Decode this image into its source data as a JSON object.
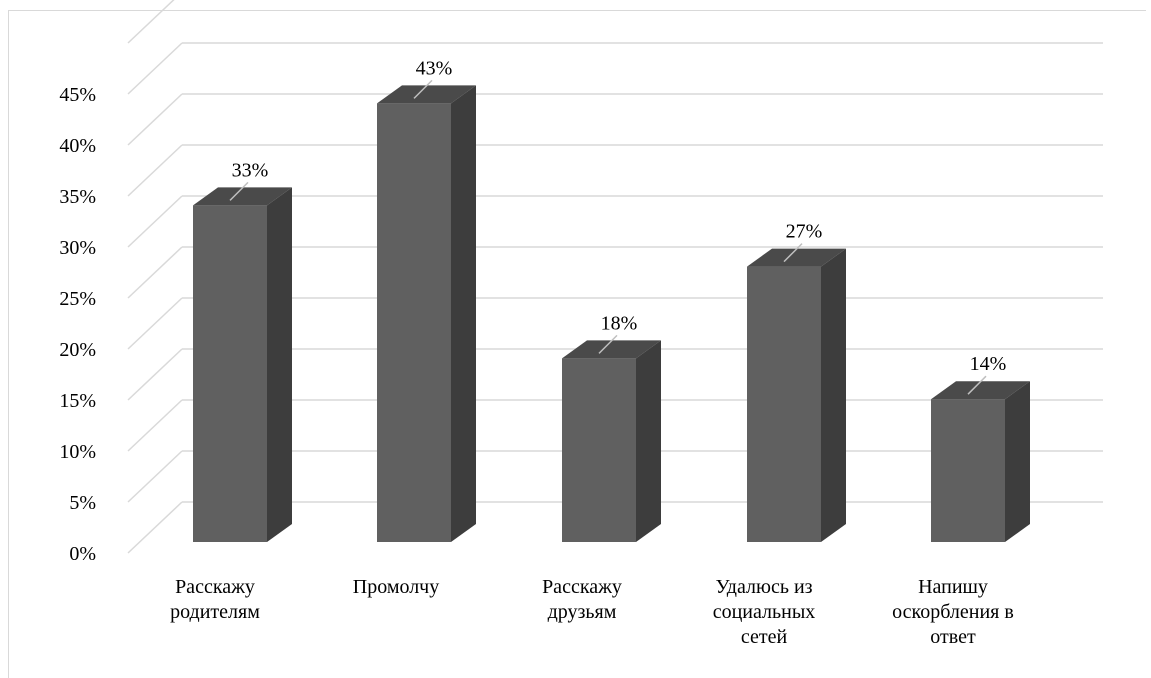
{
  "chart_data": {
    "type": "bar",
    "style": "3d-column",
    "categories": [
      [
        "Расскажу",
        "родителям"
      ],
      [
        "Промолчу"
      ],
      [
        "Расскажу",
        "друзьям"
      ],
      [
        "Удалюсь из",
        "социальных",
        "сетей"
      ],
      [
        "Напишу",
        "оскорбления в",
        "ответ"
      ]
    ],
    "values": [
      33,
      43,
      18,
      27,
      14
    ],
    "data_labels": [
      "33%",
      "43%",
      "18%",
      "27%",
      "14%"
    ],
    "y_ticks": [
      "0%",
      "5%",
      "10%",
      "15%",
      "20%",
      "25%",
      "30%",
      "35%",
      "40%",
      "45%"
    ],
    "ylim": [
      0,
      45
    ],
    "grid": true,
    "legend": "none",
    "colors": {
      "bar_front": "#606060",
      "bar_side": "#3d3d3d",
      "bar_top": "#4a4a4a",
      "gridline": "#d9d9d9",
      "leader_line": "#bfbfbf"
    }
  }
}
